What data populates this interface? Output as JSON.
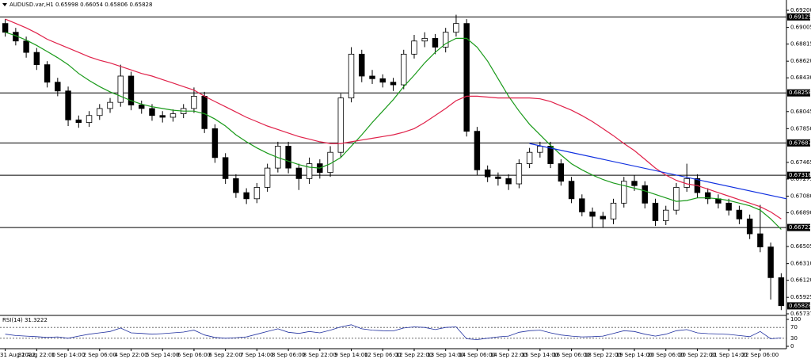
{
  "chart_data": {
    "type": "candlestick",
    "title": "AUDUSD.var,H1  0.65998 0.66054 0.65806 0.65828",
    "categories": [
      "31 Aug 2022",
      null,
      null,
      "31 Aug 22:00",
      null,
      null,
      "1 Sep 14:00",
      null,
      null,
      "2 Sep 06:00",
      null,
      null,
      "4 Sep 22:00",
      null,
      null,
      "5 Sep 14:00",
      null,
      null,
      "6 Sep 06:00",
      null,
      null,
      "6 Sep 22:00",
      null,
      null,
      "7 Sep 14:00",
      null,
      null,
      "8 Sep 06:00",
      null,
      null,
      "8 Sep 22:00",
      null,
      null,
      "9 Sep 14:00",
      null,
      null,
      "12 Sep 06:00",
      null,
      null,
      "12 Sep 22:00",
      null,
      null,
      "13 Sep 14:00",
      null,
      null,
      "14 Sep 06:00",
      null,
      null,
      "14 Sep 22:00",
      null,
      null,
      "15 Sep 14:00",
      null,
      null,
      "16 Sep 06:00",
      null,
      null,
      "18 Sep 22:00",
      null,
      null,
      "19 Sep 14:00",
      null,
      null,
      "20 Sep 06:00",
      null,
      null,
      "20 Sep 22:00",
      null,
      null,
      "21 Sep 14:00",
      null,
      null,
      "22 Sep 06:00",
      null,
      null
    ],
    "open": [
      0.6905,
      0.6895,
      0.6885,
      0.6872,
      0.6858,
      0.6838,
      0.6828,
      0.6795,
      0.6792,
      0.68,
      0.6808,
      0.6815,
      0.6845,
      0.6812,
      0.6808,
      0.68,
      0.6798,
      0.6802,
      0.6808,
      0.6822,
      0.6785,
      0.6752,
      0.6728,
      0.6712,
      0.6705,
      0.6718,
      0.674,
      0.6765,
      0.674,
      0.6728,
      0.6745,
      0.6735,
      0.6758,
      0.682,
      0.687,
      0.6845,
      0.6842,
      0.6838,
      0.6835,
      0.687,
      0.6885,
      0.6888,
      0.6878,
      0.6895,
      0.6905,
      0.6782,
      0.6738,
      0.673,
      0.6728,
      0.6722,
      0.6745,
      0.6758,
      0.6765,
      0.6745,
      0.6725,
      0.6705,
      0.669,
      0.6685,
      0.6682,
      0.67,
      0.6725,
      0.672,
      0.67,
      0.668,
      0.6692,
      0.6718,
      0.6728,
      0.6712,
      0.6705,
      0.67,
      0.6692,
      0.6682,
      0.6665,
      0.665,
      0.6615
    ],
    "high": [
      0.691,
      0.69,
      0.689,
      0.6877,
      0.6862,
      0.6843,
      0.6833,
      0.68,
      0.6805,
      0.6813,
      0.682,
      0.6858,
      0.685,
      0.6817,
      0.6813,
      0.6805,
      0.6807,
      0.6813,
      0.6832,
      0.6827,
      0.679,
      0.6757,
      0.6733,
      0.6717,
      0.6723,
      0.6745,
      0.677,
      0.677,
      0.6745,
      0.6752,
      0.675,
      0.6765,
      0.6825,
      0.6878,
      0.6875,
      0.6852,
      0.6847,
      0.6843,
      0.6875,
      0.6892,
      0.6895,
      0.6893,
      0.69,
      0.6915,
      0.691,
      0.6787,
      0.6743,
      0.6735,
      0.6733,
      0.675,
      0.6763,
      0.677,
      0.677,
      0.675,
      0.673,
      0.671,
      0.6695,
      0.669,
      0.6705,
      0.673,
      0.6732,
      0.6725,
      0.6705,
      0.6697,
      0.6723,
      0.6745,
      0.6733,
      0.6717,
      0.671,
      0.6705,
      0.6697,
      0.6687,
      0.6698,
      0.6655,
      0.662
    ],
    "low": [
      0.689,
      0.688,
      0.6866,
      0.6852,
      0.6832,
      0.6822,
      0.6788,
      0.6786,
      0.6787,
      0.6795,
      0.6803,
      0.681,
      0.6806,
      0.6802,
      0.6794,
      0.6792,
      0.6793,
      0.6797,
      0.6803,
      0.678,
      0.6746,
      0.6722,
      0.6706,
      0.6699,
      0.67,
      0.6713,
      0.6735,
      0.6734,
      0.6715,
      0.6722,
      0.6728,
      0.673,
      0.6752,
      0.6815,
      0.6838,
      0.6836,
      0.6832,
      0.6828,
      0.683,
      0.6865,
      0.6878,
      0.687,
      0.6872,
      0.689,
      0.6776,
      0.6732,
      0.6724,
      0.672,
      0.6715,
      0.6717,
      0.674,
      0.6752,
      0.674,
      0.672,
      0.67,
      0.6685,
      0.6672,
      0.6672,
      0.6676,
      0.6695,
      0.6714,
      0.6694,
      0.6674,
      0.6675,
      0.6687,
      0.6713,
      0.6706,
      0.6699,
      0.6694,
      0.6686,
      0.6676,
      0.6659,
      0.6644,
      0.659,
      0.6578
    ],
    "close": [
      0.6895,
      0.6885,
      0.6872,
      0.6858,
      0.6838,
      0.6828,
      0.6795,
      0.6792,
      0.68,
      0.6808,
      0.6815,
      0.6845,
      0.6812,
      0.6808,
      0.68,
      0.6798,
      0.6802,
      0.6808,
      0.6822,
      0.6785,
      0.6752,
      0.6728,
      0.6712,
      0.6705,
      0.6718,
      0.674,
      0.6765,
      0.674,
      0.6728,
      0.6745,
      0.6735,
      0.6758,
      0.682,
      0.687,
      0.6845,
      0.6842,
      0.6838,
      0.6835,
      0.687,
      0.6885,
      0.6888,
      0.6878,
      0.6895,
      0.6905,
      0.6782,
      0.6738,
      0.673,
      0.6728,
      0.6722,
      0.6745,
      0.6758,
      0.6765,
      0.6745,
      0.6725,
      0.6705,
      0.669,
      0.6685,
      0.6682,
      0.67,
      0.6725,
      0.672,
      0.67,
      0.668,
      0.6692,
      0.6718,
      0.6728,
      0.6712,
      0.6705,
      0.67,
      0.6692,
      0.6682,
      0.6665,
      0.665,
      0.6615,
      0.6583
    ],
    "overlays": [
      {
        "color": "#1a9a1a",
        "values": [
          0.6895,
          0.6891,
          0.6886,
          0.688,
          0.6873,
          0.6866,
          0.6858,
          0.6848,
          0.684,
          0.6833,
          0.6827,
          0.6822,
          0.6817,
          0.6813,
          0.681,
          0.6808,
          0.6806,
          0.6805,
          0.6805,
          0.6802,
          0.6796,
          0.6788,
          0.6778,
          0.677,
          0.6763,
          0.6757,
          0.6752,
          0.6748,
          0.6744,
          0.6741,
          0.674,
          0.6745,
          0.6752,
          0.6765,
          0.6778,
          0.6792,
          0.6805,
          0.6818,
          0.6833,
          0.6846,
          0.686,
          0.6872,
          0.6882,
          0.6888,
          0.6888,
          0.6878,
          0.6862,
          0.6842,
          0.6822,
          0.6805,
          0.679,
          0.6778,
          0.6766,
          0.6755,
          0.6745,
          0.6738,
          0.6732,
          0.6727,
          0.6723,
          0.672,
          0.6717,
          0.6714,
          0.671,
          0.6706,
          0.6702,
          0.6703,
          0.6706,
          0.6706,
          0.6705,
          0.6703,
          0.67,
          0.6697,
          0.6692,
          0.6682,
          0.667
        ]
      },
      {
        "color": "#e0224a",
        "values": [
          0.691,
          0.6905,
          0.69,
          0.6894,
          0.6887,
          0.6882,
          0.6877,
          0.6872,
          0.6867,
          0.6863,
          0.686,
          0.6856,
          0.6852,
          0.6848,
          0.6845,
          0.6841,
          0.6837,
          0.6833,
          0.6829,
          0.6822,
          0.6816,
          0.681,
          0.6804,
          0.6798,
          0.6793,
          0.6788,
          0.6784,
          0.678,
          0.6776,
          0.6773,
          0.677,
          0.6768,
          0.6768,
          0.677,
          0.6772,
          0.6774,
          0.6776,
          0.6778,
          0.6781,
          0.6785,
          0.6792,
          0.68,
          0.6808,
          0.6817,
          0.6822,
          0.6822,
          0.6821,
          0.682,
          0.682,
          0.682,
          0.682,
          0.6819,
          0.6816,
          0.6811,
          0.6806,
          0.68,
          0.6793,
          0.6785,
          0.6777,
          0.6768,
          0.676,
          0.675,
          0.674,
          0.6732,
          0.6726,
          0.6722,
          0.672,
          0.6716,
          0.6712,
          0.6708,
          0.6704,
          0.67,
          0.6696,
          0.669,
          0.6682
        ]
      }
    ],
    "trendline": {
      "color": "#1030e0",
      "x": [
        50.5,
        75
      ],
      "values": [
        0.6768,
        0.6705
      ]
    },
    "levels": [
      0.69125,
      0.68258,
      0.67687,
      0.67318,
      0.66722
    ],
    "last_price": 0.65828,
    "ylim": [
      0.65728,
      0.69318
    ],
    "yticks": [
      {
        "value": 0.692,
        "label": "0.69200"
      },
      {
        "value": 0.69005,
        "label": "0.69005"
      },
      {
        "value": 0.68815,
        "label": "0.68815"
      },
      {
        "value": 0.6862,
        "label": "0.68620"
      },
      {
        "value": 0.6843,
        "label": "0.68430"
      },
      {
        "value": 0.68045,
        "label": "0.68045"
      },
      {
        "value": 0.6785,
        "label": "0.67850"
      },
      {
        "value": 0.67465,
        "label": "0.67465"
      },
      {
        "value": 0.67275,
        "label": "0.67275"
      },
      {
        "value": 0.6708,
        "label": "0.67080"
      },
      {
        "value": 0.6689,
        "label": "0.66890"
      },
      {
        "value": 0.66505,
        "label": "0.66505"
      },
      {
        "value": 0.6631,
        "label": "0.66310"
      },
      {
        "value": 0.6612,
        "label": "0.66120"
      },
      {
        "value": 0.65925,
        "label": "0.65925"
      },
      {
        "value": 0.65737,
        "label": "0.65737"
      }
    ],
    "rsi": {
      "label": "RSI(14) 31.3222",
      "color": "#2030a0",
      "ylim": [
        0,
        100
      ],
      "yticks": [
        100,
        70,
        30,
        0
      ],
      "values": [
        45,
        40,
        38,
        36,
        33,
        35,
        30,
        38,
        45,
        50,
        55,
        68,
        50,
        48,
        45,
        47,
        50,
        53,
        60,
        42,
        33,
        30,
        32,
        35,
        45,
        55,
        65,
        52,
        48,
        55,
        50,
        60,
        72,
        80,
        65,
        60,
        58,
        57,
        68,
        72,
        70,
        62,
        70,
        72,
        28,
        25,
        30,
        35,
        38,
        52,
        58,
        60,
        50,
        42,
        38,
        35,
        36,
        38,
        48,
        58,
        55,
        45,
        38,
        45,
        58,
        62,
        50,
        47,
        46,
        44,
        40,
        36,
        55,
        28,
        31.3222
      ]
    }
  }
}
